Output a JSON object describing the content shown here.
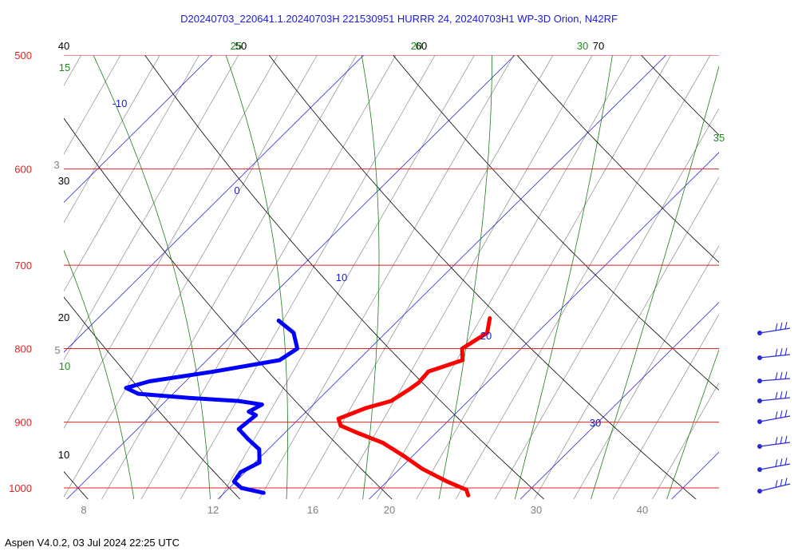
{
  "title": "D20240703_220641.1.20240703H 221530951 HURRR 24, 20240703H1 WP-3D Orion, N42RF",
  "footer": "Aspen V4.0.2, 03 Jul 2024  22:25 UTC",
  "colors": {
    "isobar": "#e32222",
    "isotherm": "#2b2bd9",
    "dry_adiabat": "#000000",
    "moist_adiabat": "#1f7a1f",
    "mixing_ratio": "#8a8a8a",
    "temperature": "#ff0000",
    "dewpoint": "#0000ff",
    "pressure_label": "#e32222",
    "isotherm_label": "#1a1ad0",
    "moist_label": "#1f8a1f",
    "mixing_label": "#808080",
    "title": "#1a1adb"
  },
  "chart_data": {
    "type": "skew-t",
    "pressure_levels": [
      500,
      600,
      700,
      800,
      900,
      1000
    ],
    "isotherms": [
      -10,
      0,
      10,
      20,
      30
    ],
    "dry_adiabat_labels": [
      "10",
      "20",
      "30",
      "40",
      "50",
      "60",
      "70"
    ],
    "moist_adiabat_labels": [
      "10",
      "15",
      "20",
      "25",
      "30",
      "35"
    ],
    "mixing_ratio_labels": [
      "3",
      "5",
      "8",
      "12",
      "16",
      "20",
      "30",
      "40"
    ],
    "temperature_profile": [
      [
        762,
        15.9
      ],
      [
        780,
        16.7
      ],
      [
        800,
        16.1
      ],
      [
        815,
        16.9
      ],
      [
        830,
        15.4
      ],
      [
        845,
        15.5
      ],
      [
        855,
        15.3
      ],
      [
        870,
        14.9
      ],
      [
        880,
        13.7
      ],
      [
        895,
        12.6
      ],
      [
        905,
        13.2
      ],
      [
        915,
        14.7
      ],
      [
        930,
        17.1
      ],
      [
        950,
        19.4
      ],
      [
        970,
        21.5
      ],
      [
        990,
        24.0
      ],
      [
        1003,
        25.8
      ],
      [
        1012,
        26.3
      ]
    ],
    "dewpoint_profile": [
      [
        765,
        2.1
      ],
      [
        780,
        3.9
      ],
      [
        800,
        5.2
      ],
      [
        815,
        4.8
      ],
      [
        830,
        1.2
      ],
      [
        843,
        -2.4
      ],
      [
        852,
        -3.5
      ],
      [
        860,
        -2.3
      ],
      [
        866,
        1.5
      ],
      [
        870,
        4.8
      ],
      [
        875,
        6.6
      ],
      [
        885,
        6.2
      ],
      [
        890,
        6.9
      ],
      [
        910,
        6.7
      ],
      [
        925,
        8.0
      ],
      [
        940,
        9.4
      ],
      [
        960,
        10.3
      ],
      [
        975,
        9.7
      ],
      [
        990,
        9.9
      ],
      [
        1000,
        10.8
      ],
      [
        1008,
        12.6
      ]
    ],
    "wind_barb_count": 8
  }
}
